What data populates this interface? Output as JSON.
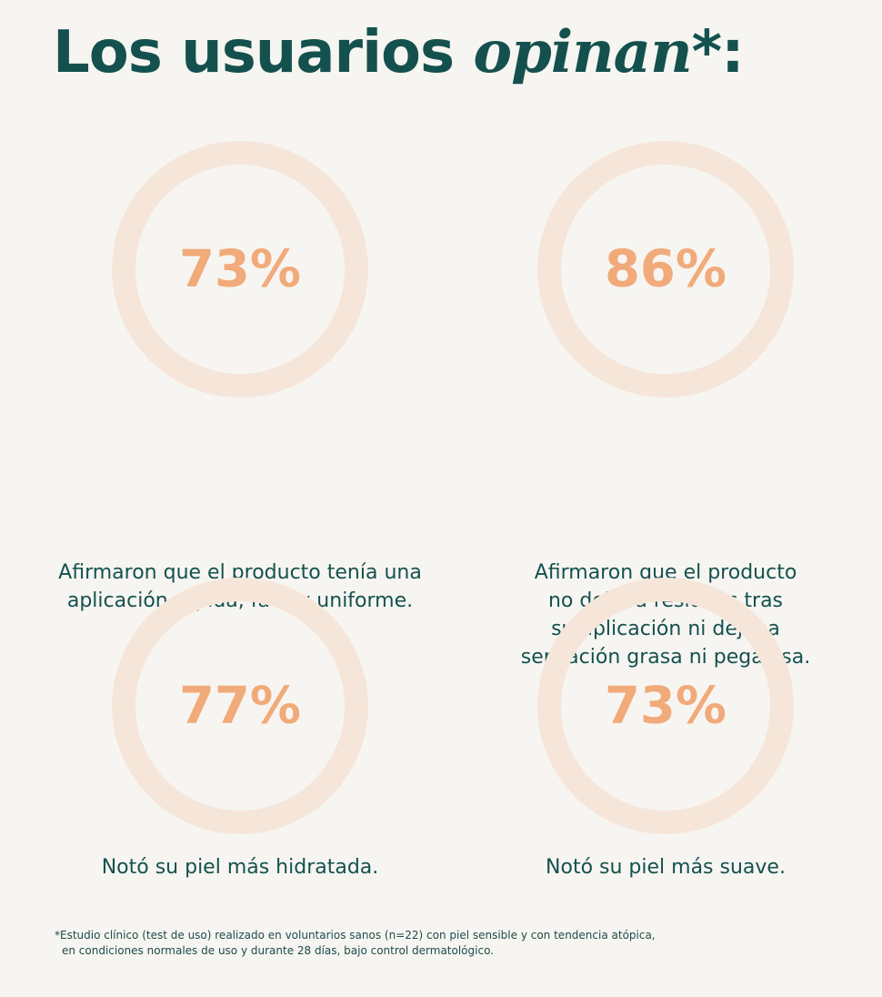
{
  "title": {
    "prefix": "Los usuarios ",
    "accent": "opinan",
    "suffix": "*:"
  },
  "colors": {
    "title": "#14514e",
    "ring_fill": "#f1aa7a",
    "ring_track": "#f6e6da",
    "background": "#f7f5f1"
  },
  "stats": [
    {
      "value_label": "73%",
      "caption_lines": [
        "Afirmaron que el producto tenía una",
        "aplicación rápida, fácil y uniforme."
      ]
    },
    {
      "value_label": "86%",
      "caption_lines": [
        "Afirmaron que el producto",
        "no dejaba residuos tras",
        "su aplicación ni dejaba",
        "sensación grasa ni pegajosa."
      ]
    },
    {
      "value_label": "77%",
      "caption_lines": [
        "Notó su piel más hidratada."
      ]
    },
    {
      "value_label": "73%",
      "caption_lines": [
        "Notó su piel más suave."
      ]
    }
  ],
  "chart_data": {
    "type": "pie",
    "categories": [
      "Afirmaron que el producto tenía una aplicación rápida, fácil y uniforme.",
      "Afirmaron que el producto no dejaba residuos tras su aplicación ni dejaba sensación grasa ni pegajosa.",
      "Notó su piel más hidratada.",
      "Notó su piel más suave."
    ],
    "values": [
      73,
      86,
      77,
      73
    ],
    "unit": "%",
    "max": 100
  },
  "footnote": {
    "line1": "*Estudio clínico (test de uso) realizado en voluntarios sanos (n=22) con piel sensible y con tendencia atópica,",
    "line2": "en condiciones normales de uso y durante 28 días, bajo control dermatológico."
  }
}
